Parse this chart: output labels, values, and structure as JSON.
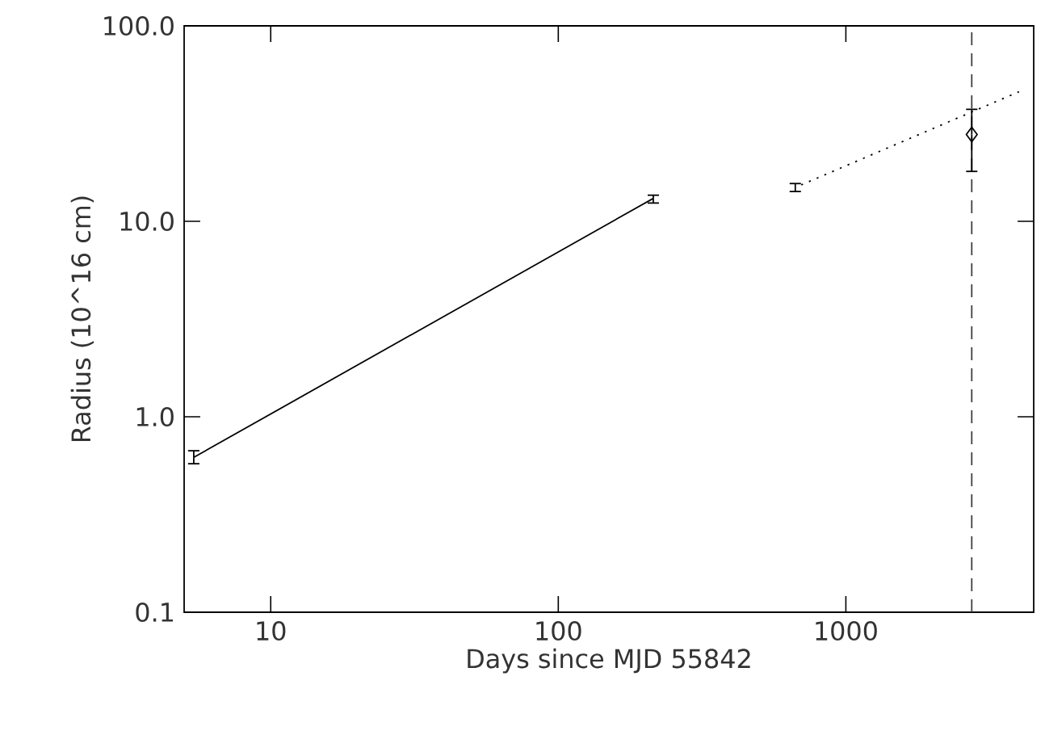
{
  "chart_data": {
    "type": "scatter",
    "xlabel": "Days since MJD 55842",
    "ylabel": "Radius (10^16 cm)",
    "log": "xy",
    "grid": false,
    "xlim": [
      5,
      4500
    ],
    "ylim": [
      0.1,
      100
    ],
    "xticks": [
      10,
      100,
      1000
    ],
    "yticks": [
      {
        "value": 0.1,
        "label": "0.1"
      },
      {
        "value": 1,
        "label": "1.0"
      },
      {
        "value": 10,
        "label": "10.0"
      },
      {
        "value": 100,
        "label": "100.0"
      }
    ],
    "series": [
      {
        "type": "line",
        "line_style": "solid",
        "color": "#000000",
        "x": [
          5.4,
          214
        ],
        "values": [
          0.62,
          13.1
        ],
        "errors": [
          [
            0.575,
            0.67
          ],
          [
            12.4,
            13.6
          ]
        ]
      },
      {
        "type": "line",
        "line_style": "dotted",
        "color": "#000000",
        "x": [
          667,
          4000
        ],
        "values": [
          14.9,
          46
        ],
        "errors": [
          [
            14.2,
            15.6
          ],
          null
        ]
      },
      {
        "marker": "diamond",
        "color": "#000000",
        "x": [
          2740
        ],
        "values": [
          27.8
        ],
        "errors": [
          [
            18.0,
            37.4
          ]
        ]
      }
    ],
    "ref_lines": [
      {
        "axis": "x",
        "value": 2740,
        "line_style": "dashed",
        "color": "#404040"
      }
    ]
  }
}
